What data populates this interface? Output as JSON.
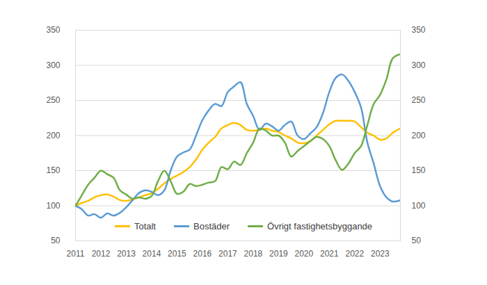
{
  "chart_data": {
    "type": "line",
    "x": [
      2011,
      2011.25,
      2011.5,
      2011.75,
      2012,
      2012.25,
      2012.5,
      2012.75,
      2013,
      2013.25,
      2013.5,
      2013.75,
      2014,
      2014.25,
      2014.5,
      2014.75,
      2015,
      2015.25,
      2015.5,
      2015.75,
      2016,
      2016.25,
      2016.5,
      2016.75,
      2017,
      2017.25,
      2017.5,
      2017.75,
      2018,
      2018.25,
      2018.5,
      2018.75,
      2019,
      2019.25,
      2019.5,
      2019.75,
      2020,
      2020.25,
      2020.5,
      2020.75,
      2021,
      2021.25,
      2021.5,
      2021.75,
      2022,
      2022.25,
      2022.5,
      2022.75,
      2023,
      2023.25,
      2023.5,
      2023.8
    ],
    "series": [
      {
        "name": "Totalt",
        "color": "#FFC000",
        "values": [
          100,
          104,
          107,
          112,
          115,
          116,
          113,
          108,
          107,
          109,
          112,
          115,
          118,
          124,
          132,
          138,
          143,
          148,
          155,
          166,
          180,
          190,
          198,
          210,
          215,
          218,
          215,
          208,
          207,
          208,
          210,
          207,
          205,
          200,
          196,
          190,
          189,
          192,
          200,
          208,
          216,
          221,
          221,
          221,
          220,
          212,
          204,
          200,
          194,
          196,
          204,
          210
        ]
      },
      {
        "name": "Bostäder",
        "color": "#5B9BD5",
        "values": [
          100,
          95,
          86,
          88,
          83,
          89,
          86,
          90,
          98,
          108,
          118,
          122,
          120,
          115,
          122,
          150,
          170,
          176,
          180,
          200,
          222,
          236,
          245,
          242,
          262,
          270,
          276,
          245,
          228,
          208,
          217,
          213,
          207,
          215,
          220,
          200,
          195,
          203,
          212,
          232,
          262,
          282,
          287,
          278,
          262,
          240,
          190,
          160,
          128,
          112,
          106,
          108
        ]
      },
      {
        "name": "Övrigt fastighetsbyggande",
        "color": "#70AD47",
        "values": [
          100,
          115,
          130,
          140,
          150,
          145,
          140,
          122,
          116,
          110,
          112,
          110,
          114,
          135,
          150,
          135,
          117,
          120,
          131,
          128,
          130,
          133,
          135,
          155,
          152,
          163,
          158,
          175,
          190,
          210,
          207,
          200,
          200,
          190,
          170,
          178,
          185,
          192,
          198,
          195,
          185,
          165,
          151,
          160,
          175,
          185,
          215,
          245,
          258,
          280,
          310,
          316
        ]
      }
    ],
    "xlim": [
      2011,
      2023.8
    ],
    "xticks": [
      2011,
      2012,
      2013,
      2014,
      2015,
      2016,
      2017,
      2018,
      2019,
      2020,
      2021,
      2022,
      2023
    ],
    "ylim": [
      50,
      350
    ],
    "yticks": [
      50,
      100,
      150,
      200,
      250,
      300,
      350
    ],
    "y2lim": [
      50,
      350
    ],
    "y2ticks": [
      50,
      100,
      150,
      200,
      250,
      300,
      350
    ],
    "grid": true,
    "legend": "bottom"
  }
}
